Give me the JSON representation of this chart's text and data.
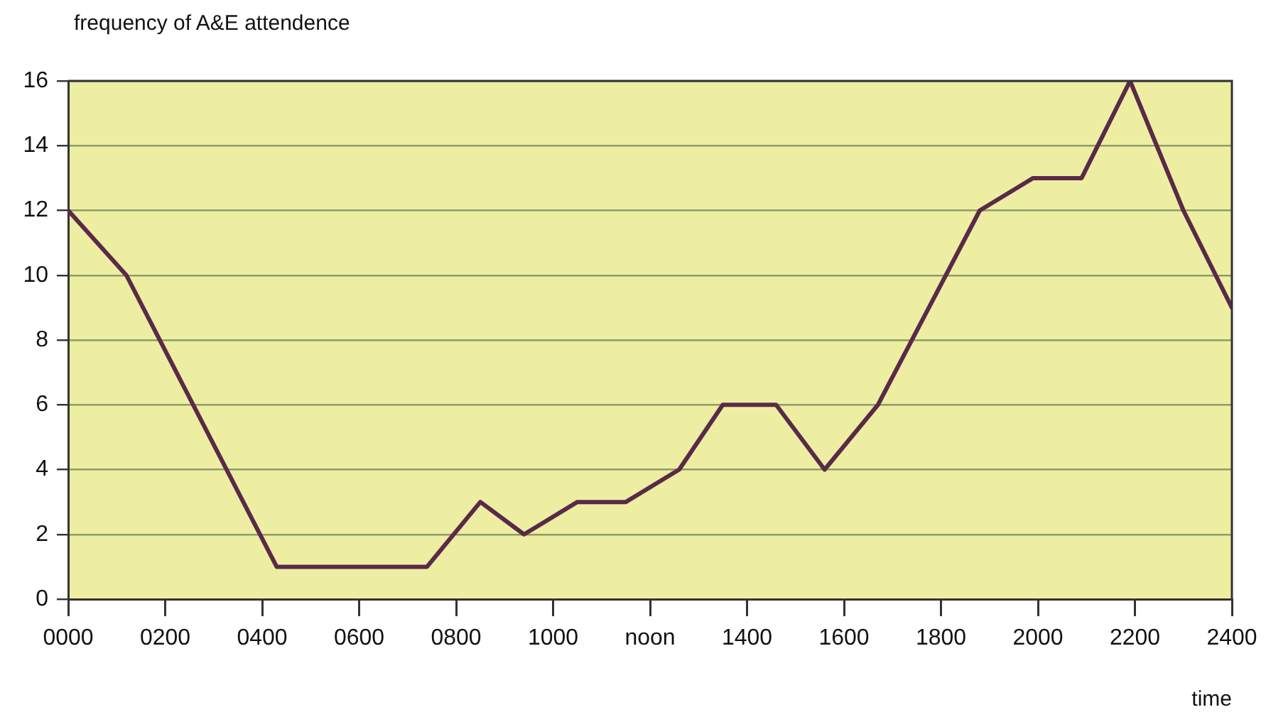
{
  "chart_data": {
    "type": "line",
    "ylabel": "frequency of A&E attendence",
    "xlabel": "time",
    "x": [
      0,
      120,
      430,
      740,
      850,
      940,
      1050,
      1150,
      1260,
      1350,
      1460,
      1560,
      1670,
      1880,
      1990,
      2090,
      2190,
      2300,
      2400
    ],
    "series": [
      {
        "color": "#5a2a48",
        "values": [
          12,
          10,
          1,
          1,
          3,
          2,
          3,
          3,
          4,
          6,
          6,
          4,
          6,
          12,
          13,
          13,
          16,
          12,
          9
        ]
      }
    ],
    "xlim": [
      0,
      2400
    ],
    "xticks": [
      {
        "value": 0,
        "label": "0000"
      },
      {
        "value": 200,
        "label": "0200"
      },
      {
        "value": 400,
        "label": "0400"
      },
      {
        "value": 600,
        "label": "0600"
      },
      {
        "value": 800,
        "label": "0800"
      },
      {
        "value": 1000,
        "label": "1000"
      },
      {
        "value": 1200,
        "label": "noon"
      },
      {
        "value": 1400,
        "label": "1400"
      },
      {
        "value": 1600,
        "label": "1600"
      },
      {
        "value": 1800,
        "label": "1800"
      },
      {
        "value": 2000,
        "label": "2000"
      },
      {
        "value": 2200,
        "label": "2200"
      },
      {
        "value": 2400,
        "label": "2400"
      }
    ],
    "ylim": [
      0,
      16
    ],
    "yticks": [
      0,
      2,
      4,
      6,
      8,
      10,
      12,
      14,
      16
    ],
    "grid": "y",
    "legend": false,
    "marker": "none",
    "line_style": "solid"
  }
}
